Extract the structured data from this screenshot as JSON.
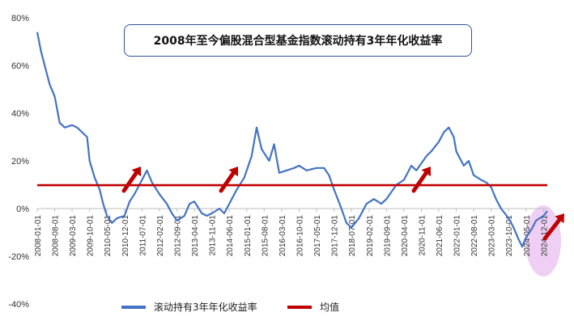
{
  "chart_data": {
    "type": "line",
    "title": "2008年至今偏股混合型基金指数滚动持有3年年化收益率",
    "xlabel": "",
    "ylabel": "",
    "ylim": [
      -0.4,
      0.8
    ],
    "yticks": [
      "80%",
      "60%",
      "40%",
      "20%",
      "0%",
      "-20%",
      "-40%"
    ],
    "ytick_values": [
      0.8,
      0.6,
      0.4,
      0.2,
      0.0,
      -0.2,
      -0.4
    ],
    "xticks": [
      "2008-01-01",
      "2008-08-01",
      "2009-03-01",
      "2009-10-01",
      "2010-05-01",
      "2010-12-01",
      "2011-07-01",
      "2012-02-01",
      "2012-09-01",
      "2013-04-01",
      "2013-11-01",
      "2014-06-01",
      "2015-01-01",
      "2015-08-01",
      "2016-03-01",
      "2016-10-01",
      "2017-05-01",
      "2017-12-01",
      "2018-07-01",
      "2019-02-01",
      "2019-09-01",
      "2020-04-01",
      "2020-11-01",
      "2021-06-01",
      "2022-01-01",
      "2022-08-01",
      "2023-03-01",
      "2023-10-01",
      "2024-05-01",
      "2024-12-01"
    ],
    "grid": false,
    "legend_position": "bottom",
    "series": [
      {
        "name": "滚动持有3年年化收益率",
        "color": "#4472c4",
        "points": [
          [
            "2008-01-01",
            0.74
          ],
          [
            "2008-02-15",
            0.66
          ],
          [
            "2008-04-01",
            0.6
          ],
          [
            "2008-06-01",
            0.52
          ],
          [
            "2008-08-01",
            0.47
          ],
          [
            "2008-10-01",
            0.36
          ],
          [
            "2008-12-01",
            0.34
          ],
          [
            "2009-03-01",
            0.35
          ],
          [
            "2009-05-01",
            0.34
          ],
          [
            "2009-07-01",
            0.32
          ],
          [
            "2009-09-01",
            0.3
          ],
          [
            "2009-10-01",
            0.2
          ],
          [
            "2009-12-01",
            0.13
          ],
          [
            "2010-02-01",
            0.08
          ],
          [
            "2010-03-15",
            0.02
          ],
          [
            "2010-05-01",
            -0.03
          ],
          [
            "2010-07-01",
            -0.06
          ],
          [
            "2010-09-01",
            -0.04
          ],
          [
            "2010-12-01",
            -0.03
          ],
          [
            "2011-02-01",
            0.03
          ],
          [
            "2011-04-01",
            0.06
          ],
          [
            "2011-07-01",
            0.12
          ],
          [
            "2011-09-01",
            0.16
          ],
          [
            "2011-11-01",
            0.11
          ],
          [
            "2012-02-01",
            0.06
          ],
          [
            "2012-05-01",
            0.02
          ],
          [
            "2012-07-01",
            -0.02
          ],
          [
            "2012-09-01",
            -0.05
          ],
          [
            "2012-12-01",
            -0.03
          ],
          [
            "2013-02-01",
            0.02
          ],
          [
            "2013-04-01",
            0.03
          ],
          [
            "2013-07-01",
            -0.02
          ],
          [
            "2013-09-01",
            -0.03
          ],
          [
            "2013-11-01",
            -0.02
          ],
          [
            "2014-02-01",
            0.0
          ],
          [
            "2014-04-01",
            -0.02
          ],
          [
            "2014-06-01",
            0.02
          ],
          [
            "2014-09-01",
            0.08
          ],
          [
            "2014-12-01",
            0.13
          ],
          [
            "2015-03-01",
            0.22
          ],
          [
            "2015-05-01",
            0.34
          ],
          [
            "2015-07-01",
            0.25
          ],
          [
            "2015-10-01",
            0.2
          ],
          [
            "2015-12-01",
            0.27
          ],
          [
            "2016-02-01",
            0.15
          ],
          [
            "2016-05-01",
            0.16
          ],
          [
            "2016-08-01",
            0.17
          ],
          [
            "2016-10-01",
            0.18
          ],
          [
            "2017-01-01",
            0.16
          ],
          [
            "2017-05-01",
            0.17
          ],
          [
            "2017-08-01",
            0.17
          ],
          [
            "2017-10-01",
            0.14
          ],
          [
            "2017-12-01",
            0.08
          ],
          [
            "2018-03-01",
            0.0
          ],
          [
            "2018-05-01",
            -0.06
          ],
          [
            "2018-07-01",
            -0.08
          ],
          [
            "2018-10-01",
            -0.04
          ],
          [
            "2019-01-01",
            0.02
          ],
          [
            "2019-04-01",
            0.04
          ],
          [
            "2019-07-01",
            0.02
          ],
          [
            "2019-09-01",
            0.04
          ],
          [
            "2020-01-01",
            0.1
          ],
          [
            "2020-04-01",
            0.12
          ],
          [
            "2020-07-01",
            0.18
          ],
          [
            "2020-09-01",
            0.16
          ],
          [
            "2020-11-01",
            0.19
          ],
          [
            "2021-01-01",
            0.22
          ],
          [
            "2021-03-01",
            0.24
          ],
          [
            "2021-06-01",
            0.28
          ],
          [
            "2021-08-01",
            0.32
          ],
          [
            "2021-10-01",
            0.34
          ],
          [
            "2021-12-01",
            0.3
          ],
          [
            "2022-01-01",
            0.24
          ],
          [
            "2022-04-01",
            0.18
          ],
          [
            "2022-06-01",
            0.2
          ],
          [
            "2022-08-01",
            0.14
          ],
          [
            "2022-11-01",
            0.12
          ],
          [
            "2023-01-01",
            0.11
          ],
          [
            "2023-03-01",
            0.09
          ],
          [
            "2023-05-01",
            0.04
          ],
          [
            "2023-07-01",
            0.0
          ],
          [
            "2023-10-01",
            -0.04
          ],
          [
            "2023-12-01",
            -0.08
          ],
          [
            "2024-02-01",
            -0.13
          ],
          [
            "2024-03-15",
            -0.16
          ],
          [
            "2024-05-01",
            -0.12
          ],
          [
            "2024-07-01",
            -0.09
          ],
          [
            "2024-09-01",
            -0.05
          ],
          [
            "2024-12-01",
            -0.03
          ],
          [
            "2025-01-15",
            -0.01
          ]
        ]
      },
      {
        "name": "均值",
        "color": "#c00000",
        "points": [
          [
            "2008-01-01",
            0.098
          ],
          [
            "2025-01-15",
            0.098
          ]
        ]
      }
    ]
  },
  "legend": {
    "series_label": "滚动持有3年年化收益率",
    "mean_label": "均值"
  }
}
